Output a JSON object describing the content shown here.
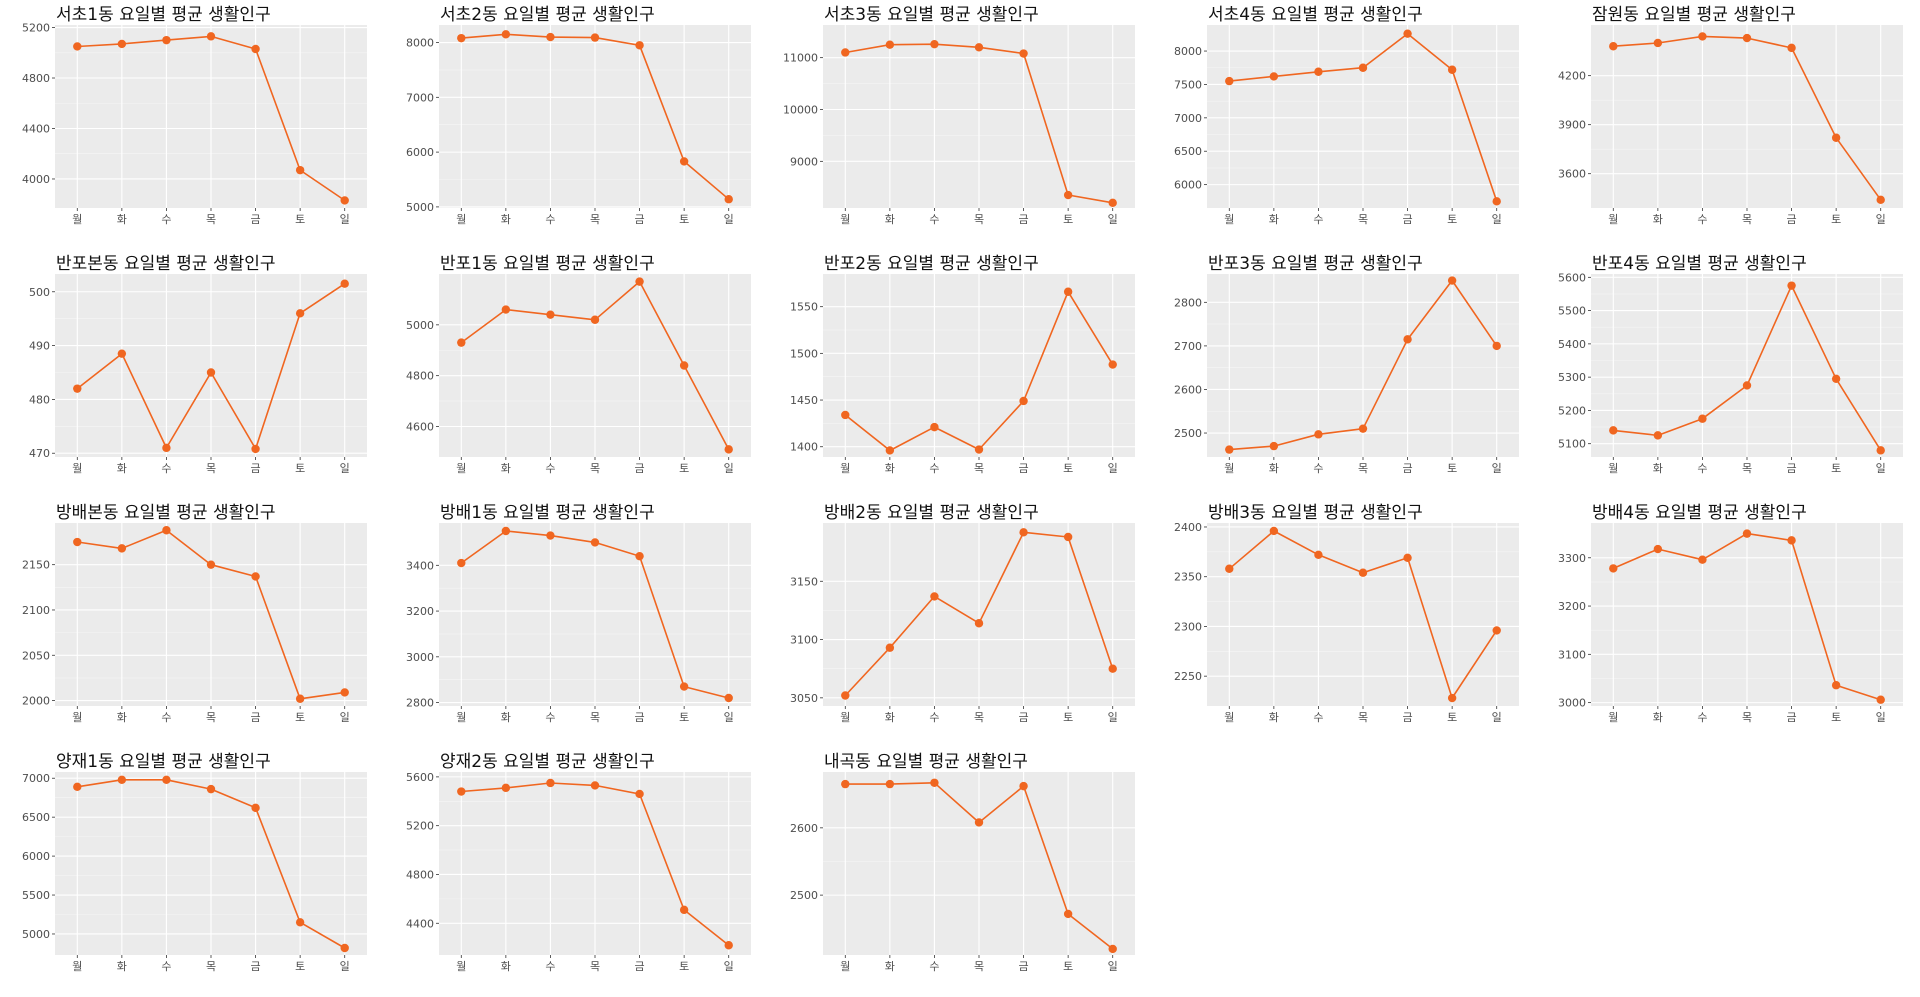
{
  "chart_data": [
    {
      "type": "line",
      "title": "서초1동 요일별 평균 생활인구",
      "categories": [
        "월",
        "화",
        "수",
        "목",
        "금",
        "토",
        "일"
      ],
      "values": [
        5050,
        5070,
        5100,
        5130,
        5030,
        4070,
        3830
      ],
      "ylim": [
        3770,
        5220
      ],
      "yticks": [
        4000,
        4400,
        4800,
        5200
      ],
      "color": "#f06620"
    },
    {
      "type": "line",
      "title": "서초2동 요일별 평균 생활인구",
      "categories": [
        "월",
        "화",
        "수",
        "목",
        "금",
        "토",
        "일"
      ],
      "values": [
        8080,
        8150,
        8100,
        8090,
        7950,
        5830,
        5140
      ],
      "ylim": [
        4980,
        8320
      ],
      "yticks": [
        5000,
        6000,
        7000,
        8000
      ],
      "color": "#f06620"
    },
    {
      "type": "line",
      "title": "서초3동 요일별 평균 생활인구",
      "categories": [
        "월",
        "화",
        "수",
        "목",
        "금",
        "토",
        "일"
      ],
      "values": [
        11100,
        11250,
        11260,
        11200,
        11080,
        8350,
        8200
      ],
      "ylim": [
        8100,
        11630
      ],
      "yticks": [
        9000,
        10000,
        11000
      ],
      "color": "#f06620"
    },
    {
      "type": "line",
      "title": "서초4동 요일별 평균 생활인구",
      "categories": [
        "월",
        "화",
        "수",
        "목",
        "금",
        "토",
        "일"
      ],
      "values": [
        7550,
        7620,
        7690,
        7750,
        8260,
        7720,
        5750
      ],
      "ylim": [
        5650,
        8390
      ],
      "yticks": [
        6000,
        6500,
        7000,
        7500,
        8000
      ],
      "color": "#f06620"
    },
    {
      "type": "line",
      "title": "잠원동 요일별 평균 생활인구",
      "categories": [
        "월",
        "화",
        "수",
        "목",
        "금",
        "토",
        "일"
      ],
      "values": [
        4380,
        4400,
        4440,
        4430,
        4370,
        3820,
        3440
      ],
      "ylim": [
        3390,
        4510
      ],
      "yticks": [
        3600,
        3900,
        4200
      ],
      "color": "#f06620"
    },
    {
      "type": "line",
      "title": "반포본동 요일별 평균 생활인구",
      "categories": [
        "월",
        "화",
        "수",
        "목",
        "금",
        "토",
        "일"
      ],
      "values": [
        482,
        488.5,
        471,
        485,
        470.8,
        496,
        501.5
      ],
      "ylim": [
        469.3,
        503.3
      ],
      "yticks": [
        470,
        480,
        490,
        500
      ],
      "color": "#f06620"
    },
    {
      "type": "line",
      "title": "반포1동 요일별 평균 생활인구",
      "categories": [
        "월",
        "화",
        "수",
        "목",
        "금",
        "토",
        "일"
      ],
      "values": [
        4930,
        5060,
        5040,
        5020,
        5170,
        4840,
        4510
      ],
      "ylim": [
        4480,
        5200
      ],
      "yticks": [
        4600,
        4800,
        5000
      ],
      "color": "#f06620"
    },
    {
      "type": "line",
      "title": "반포2동 요일별 평균 생활인구",
      "categories": [
        "월",
        "화",
        "수",
        "목",
        "금",
        "토",
        "일"
      ],
      "values": [
        1434,
        1396,
        1421,
        1397,
        1449,
        1566,
        1488
      ],
      "ylim": [
        1389,
        1585
      ],
      "yticks": [
        1400,
        1450,
        1500,
        1550
      ],
      "color": "#f06620"
    },
    {
      "type": "line",
      "title": "반포3동 요일별 평균 생활인구",
      "categories": [
        "월",
        "화",
        "수",
        "목",
        "금",
        "토",
        "일"
      ],
      "values": [
        2462,
        2470,
        2497,
        2510,
        2715,
        2850,
        2700
      ],
      "ylim": [
        2445,
        2865
      ],
      "yticks": [
        2500,
        2600,
        2700,
        2800
      ],
      "color": "#f06620"
    },
    {
      "type": "line",
      "title": "반포4동 요일별 평균 생활인구",
      "categories": [
        "월",
        "화",
        "수",
        "목",
        "금",
        "토",
        "일"
      ],
      "values": [
        5140,
        5125,
        5175,
        5275,
        5575,
        5295,
        5080
      ],
      "ylim": [
        5060,
        5610
      ],
      "yticks": [
        5100,
        5200,
        5300,
        5400,
        5500,
        5600
      ],
      "color": "#f06620"
    },
    {
      "type": "line",
      "title": "방배본동 요일별 평균 생활인구",
      "categories": [
        "월",
        "화",
        "수",
        "목",
        "금",
        "토",
        "일"
      ],
      "values": [
        2175,
        2168,
        2188,
        2150,
        2137,
        2002,
        2009
      ],
      "ylim": [
        1994,
        2196
      ],
      "yticks": [
        2000,
        2050,
        2100,
        2150
      ],
      "color": "#f06620"
    },
    {
      "type": "line",
      "title": "방배1동 요일별 평균 생활인구",
      "categories": [
        "월",
        "화",
        "수",
        "목",
        "금",
        "토",
        "일"
      ],
      "values": [
        3410,
        3550,
        3530,
        3500,
        3440,
        2870,
        2820
      ],
      "ylim": [
        2785,
        3585
      ],
      "yticks": [
        2800,
        3000,
        3200,
        3400
      ],
      "color": "#f06620"
    },
    {
      "type": "line",
      "title": "방배2동 요일별 평균 생활인구",
      "categories": [
        "월",
        "화",
        "수",
        "목",
        "금",
        "토",
        "일"
      ],
      "values": [
        3052,
        3093,
        3137,
        3114,
        3192,
        3188,
        3075
      ],
      "ylim": [
        3043,
        3200
      ],
      "yticks": [
        3050,
        3100,
        3150
      ],
      "color": "#f06620"
    },
    {
      "type": "line",
      "title": "방배3동 요일별 평균 생활인구",
      "categories": [
        "월",
        "화",
        "수",
        "목",
        "금",
        "토",
        "일"
      ],
      "values": [
        2358,
        2396,
        2372,
        2354,
        2369,
        2228,
        2296
      ],
      "ylim": [
        2220,
        2404
      ],
      "yticks": [
        2250,
        2300,
        2350,
        2400
      ],
      "color": "#f06620"
    },
    {
      "type": "line",
      "title": "방배4동 요일별 평균 생활인구",
      "categories": [
        "월",
        "화",
        "수",
        "목",
        "금",
        "토",
        "일"
      ],
      "values": [
        3278,
        3318,
        3296,
        3350,
        3336,
        3036,
        3006
      ],
      "ylim": [
        2993,
        3372
      ],
      "yticks": [
        3000,
        3100,
        3200,
        3300
      ],
      "color": "#f06620"
    },
    {
      "type": "line",
      "title": "양재1동 요일별 평균 생활인구",
      "categories": [
        "월",
        "화",
        "수",
        "목",
        "금",
        "토",
        "일"
      ],
      "values": [
        6890,
        6980,
        6980,
        6860,
        6620,
        5150,
        4820
      ],
      "ylim": [
        4730,
        7080
      ],
      "yticks": [
        5000,
        5500,
        6000,
        6500,
        7000
      ],
      "color": "#f06620"
    },
    {
      "type": "line",
      "title": "양재2동 요일별 평균 생활인구",
      "categories": [
        "월",
        "화",
        "수",
        "목",
        "금",
        "토",
        "일"
      ],
      "values": [
        5480,
        5510,
        5550,
        5530,
        5460,
        4510,
        4220
      ],
      "ylim": [
        4140,
        5640
      ],
      "yticks": [
        4400,
        4800,
        5200,
        5600
      ],
      "color": "#f06620"
    },
    {
      "type": "line",
      "title": "내곡동 요일별 평균 생활인구",
      "categories": [
        "월",
        "화",
        "수",
        "목",
        "금",
        "토",
        "일"
      ],
      "values": [
        2665,
        2665,
        2667,
        2608,
        2662,
        2472,
        2420
      ],
      "ylim": [
        2411,
        2683
      ],
      "yticks": [
        2500,
        2600
      ],
      "color": "#f06620"
    }
  ]
}
